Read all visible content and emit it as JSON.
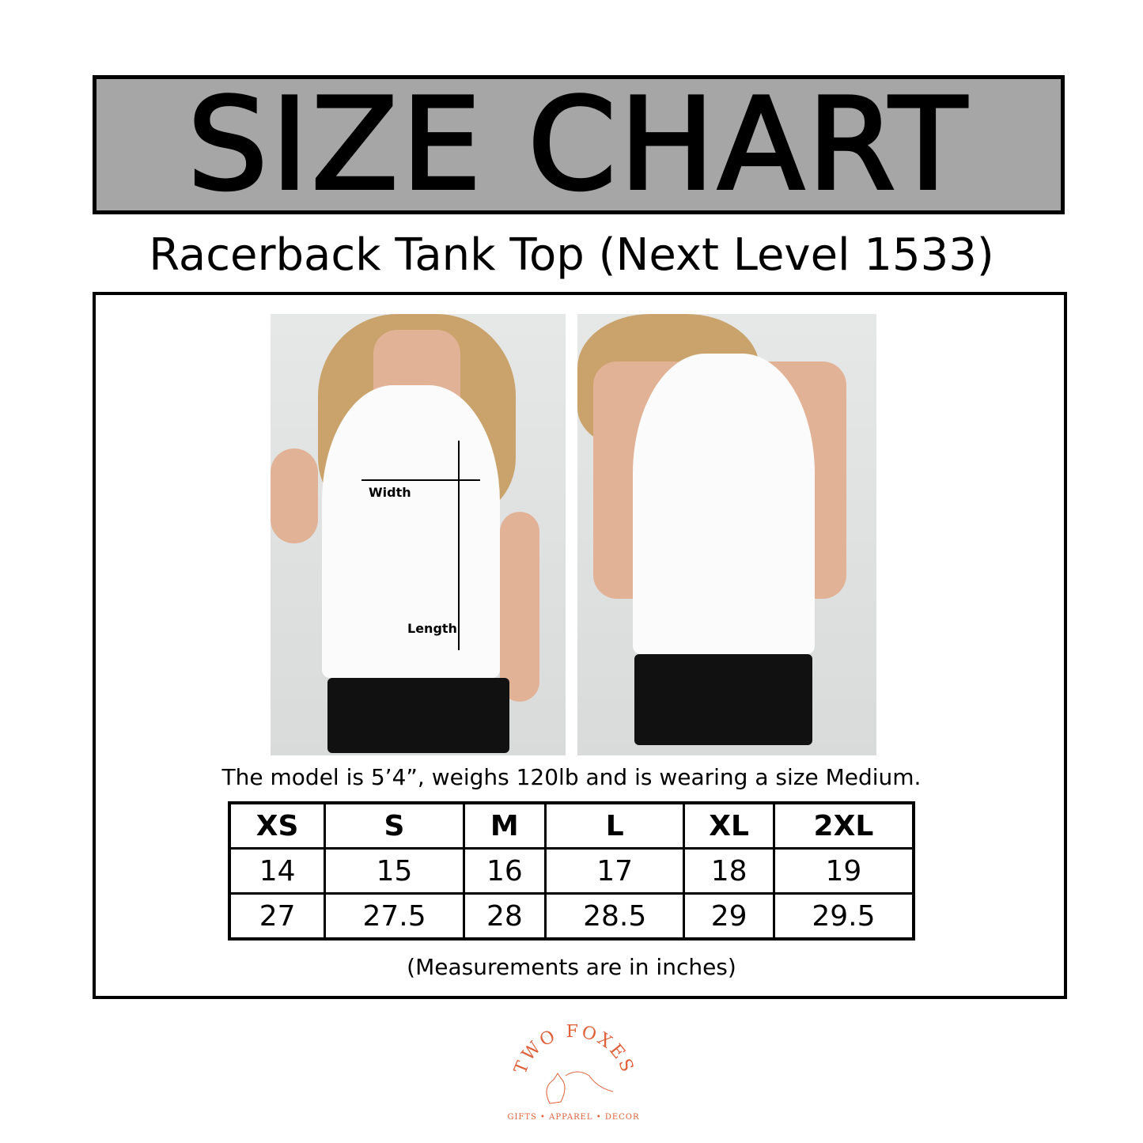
{
  "header": {
    "title": "SIZE CHART"
  },
  "subtitle": "Racerback Tank Top (Next Level 1533)",
  "photos": {
    "width_label": "Width",
    "length_label": "Length"
  },
  "caption": "The model is 5’4”, weighs 120lb and is wearing a size Medium.",
  "table": {
    "sizes": [
      "XS",
      "S",
      "M",
      "L",
      "XL",
      "2XL"
    ],
    "width": [
      "14",
      "15",
      "16",
      "17",
      "18",
      "19"
    ],
    "length": [
      "27",
      "27.5",
      "28",
      "28.5",
      "29",
      "29.5"
    ]
  },
  "footnote": "(Measurements are in inches)",
  "logo": {
    "name": "TWO FOXES",
    "tagline": "GIFTS • APPAREL • DECOR",
    "color": "#e0603a"
  }
}
